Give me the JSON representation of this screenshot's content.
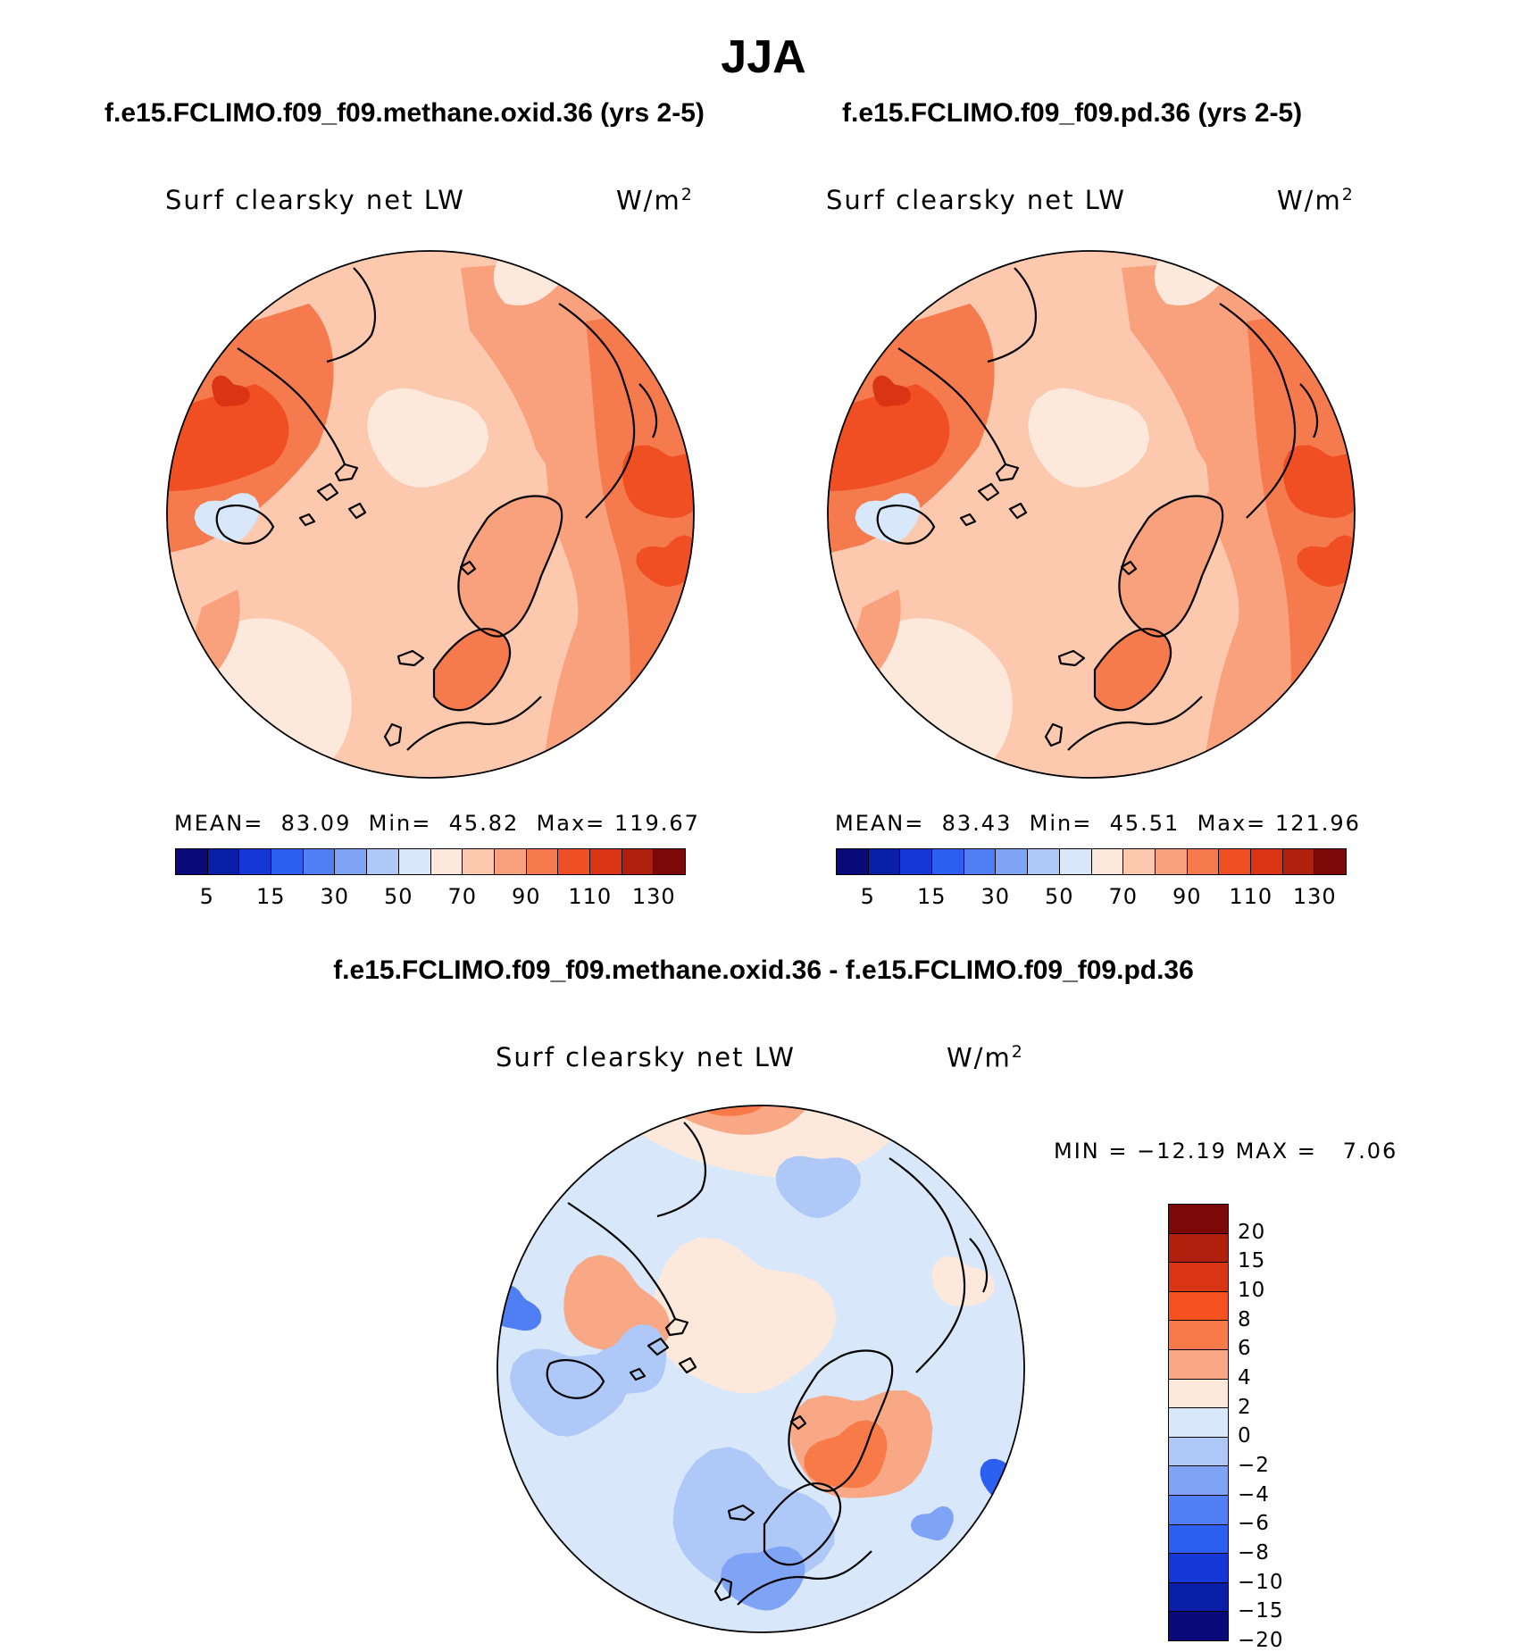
{
  "main_title": "JJA",
  "panels": [
    {
      "case": "f.e15.FCLIMO.f09_f09.methane.oxid.36 (yrs 2-5)",
      "variable": "Surf clearsky net LW",
      "units": "W/m",
      "units_exp": "2",
      "mean_label": "MEAN=",
      "mean": "83.09",
      "min_label": "Min=",
      "min": "45.82",
      "max_label": "Max=",
      "max": "119.67"
    },
    {
      "case": "f.e15.FCLIMO.f09_f09.pd.36 (yrs 2-5)",
      "variable": "Surf clearsky net LW",
      "units": "W/m",
      "units_exp": "2",
      "mean_label": "MEAN=",
      "mean": "83.43",
      "min_label": "Min=",
      "min": "45.51",
      "max_label": "Max=",
      "max": "121.96"
    }
  ],
  "diff": {
    "title": "f.e15.FCLIMO.f09_f09.methane.oxid.36 - f.e15.FCLIMO.f09_f09.pd.36",
    "variable": "Surf clearsky net LW",
    "units": "W/m",
    "units_exp": "2",
    "min_label": "MIN =",
    "min": "−12.19",
    "max_label": "MAX =",
    "max": "7.06"
  },
  "chart_data": [
    {
      "type": "heatmap",
      "title": "f.e15.FCLIMO.f09_f09.methane.oxid.36 (yrs 2-5)",
      "projection": "north polar stereographic",
      "variable": "Surf clearsky net LW",
      "units": "W/m2",
      "mean": 83.09,
      "min": 45.82,
      "max": 119.67,
      "colorbar_ticks": [
        "5",
        "15",
        "30",
        "50",
        "70",
        "90",
        "110",
        "130"
      ],
      "colorbar_colors": [
        "#0a0a7a",
        "#0a1fa8",
        "#1437d6",
        "#2b5ff0",
        "#4f7ff2",
        "#7fa3f5",
        "#aec8f7",
        "#d8e8fa",
        "#fde8dc",
        "#fcc8ae",
        "#f9a07d",
        "#f57a4e",
        "#ef4f22",
        "#d93413",
        "#b0200c",
        "#7d0808"
      ],
      "dominant_range": [
        70,
        120
      ]
    },
    {
      "type": "heatmap",
      "title": "f.e15.FCLIMO.f09_f09.pd.36 (yrs 2-5)",
      "projection": "north polar stereographic",
      "variable": "Surf clearsky net LW",
      "units": "W/m2",
      "mean": 83.43,
      "min": 45.51,
      "max": 121.96,
      "colorbar_ticks": [
        "5",
        "15",
        "30",
        "50",
        "70",
        "90",
        "110",
        "130"
      ],
      "colorbar_colors": [
        "#0a0a7a",
        "#0a1fa8",
        "#1437d6",
        "#2b5ff0",
        "#4f7ff2",
        "#7fa3f5",
        "#aec8f7",
        "#d8e8fa",
        "#fde8dc",
        "#fcc8ae",
        "#f9a07d",
        "#f57a4e",
        "#ef4f22",
        "#d93413",
        "#b0200c",
        "#7d0808"
      ],
      "dominant_range": [
        70,
        122
      ]
    },
    {
      "type": "heatmap",
      "title": "f.e15.FCLIMO.f09_f09.methane.oxid.36 - f.e15.FCLIMO.f09_f09.pd.36",
      "projection": "north polar stereographic",
      "variable": "Surf clearsky net LW",
      "units": "W/m2",
      "min": -12.19,
      "max": 7.06,
      "colorbar_ticks": [
        "20",
        "15",
        "10",
        "8",
        "6",
        "4",
        "2",
        "0",
        "−2",
        "−4",
        "−6",
        "−8",
        "−10",
        "−15",
        "−20"
      ],
      "colorbar_colors": [
        "#7d0808",
        "#b0200c",
        "#d93413",
        "#f5521f",
        "#f77a48",
        "#f9a886",
        "#fde8dc",
        "#d8e8fa",
        "#aec8f7",
        "#7fa3f5",
        "#4f7ff2",
        "#2b5ff0",
        "#1437d6",
        "#0a1fa8",
        "#0a0a7a"
      ],
      "dominant_range": [
        -4,
        4
      ]
    }
  ]
}
